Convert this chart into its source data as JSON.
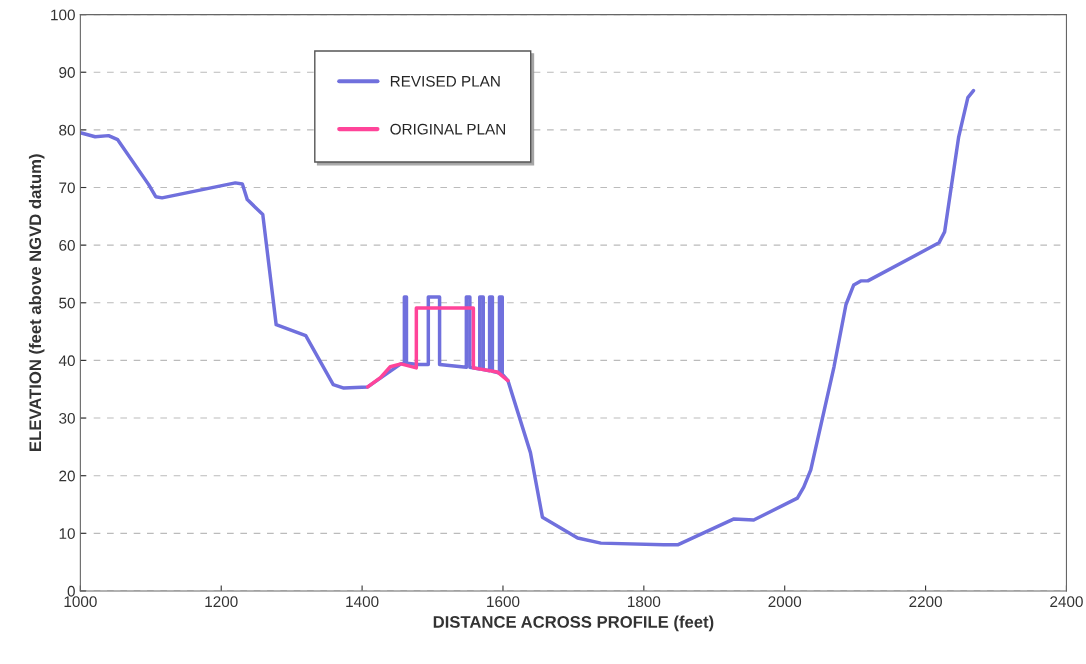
{
  "chart_data": {
    "type": "line",
    "xlabel": "DISTANCE ACROSS PROFILE (feet)",
    "ylabel": "ELEVATION (feet above NGVD datum)",
    "xlim": [
      1000,
      2400
    ],
    "xticks": [
      1000,
      1200,
      1400,
      1600,
      1800,
      2000,
      2200,
      2400
    ],
    "ylim": [
      0,
      100
    ],
    "yticks": [
      0,
      10,
      20,
      30,
      40,
      50,
      60,
      70,
      80,
      90,
      100
    ],
    "grid": "y",
    "legend": "top",
    "marker": "none",
    "line_style": "solid",
    "series": [
      {
        "name": "REVISED PLAN",
        "color": "#7070dd",
        "x": [
          1000,
          1021,
          1040,
          1053,
          1097,
          1107,
          1116,
          1220,
          1230,
          1237,
          1259,
          1278,
          1320,
          1359,
          1374,
          1408,
          1426,
          1440,
          1455,
          1460,
          1460,
          1463,
          1463,
          1480,
          1494,
          1494,
          1510,
          1510,
          1548,
          1548,
          1553,
          1553,
          1567,
          1567,
          1572,
          1572,
          1581,
          1581,
          1585,
          1585,
          1595,
          1595,
          1599,
          1599,
          1607,
          1639,
          1656,
          1706,
          1739,
          1828,
          1848,
          1928,
          1956,
          2018,
          2027,
          2037,
          2070,
          2087,
          2098,
          2108,
          2118,
          2219,
          2227,
          2247,
          2260,
          2268
        ],
        "values": [
          79.5,
          78.8,
          79,
          78.3,
          70.5,
          68.4,
          68.2,
          70.8,
          70.6,
          67.9,
          65.3,
          46.2,
          44.3,
          35.8,
          35.2,
          35.4,
          null,
          null,
          39.4,
          39.5,
          51,
          51,
          39.5,
          39.3,
          39.3,
          51,
          51,
          39.3,
          38.8,
          51,
          51,
          38.8,
          38.5,
          51,
          51,
          38.4,
          38.2,
          51,
          51,
          38.1,
          37.8,
          51,
          51,
          37.6,
          36.5,
          24,
          12.8,
          9.2,
          8.3,
          8,
          8,
          12.5,
          12.3,
          16.1,
          18,
          21,
          38.9,
          49.7,
          53.1,
          53.8,
          53.8,
          60.4,
          62.3,
          78.8,
          85.6,
          86.8
        ]
      },
      {
        "name": "ORIGINAL PLAN",
        "color": "#ff4499",
        "x": [
          1408,
          1426,
          1440,
          1455,
          1477,
          1477,
          1558,
          1558,
          1592,
          1607
        ],
        "values": [
          35.4,
          37,
          38.9,
          39.4,
          38.7,
          49.1,
          49.1,
          38.7,
          38,
          36.5
        ]
      }
    ]
  }
}
